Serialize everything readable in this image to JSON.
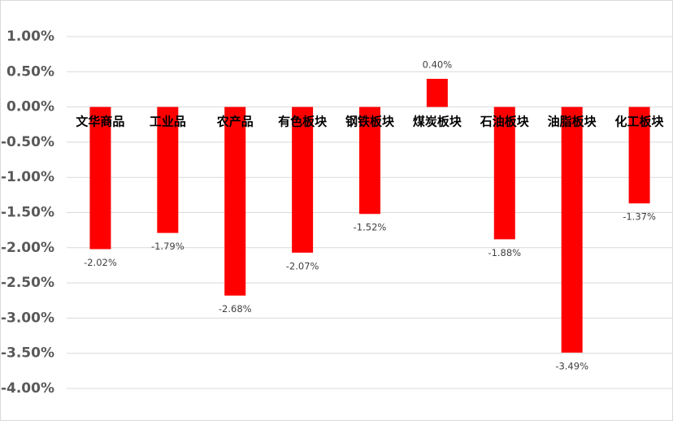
{
  "chart_data": {
    "type": "bar",
    "categories": [
      "文华商品",
      "工业品",
      "农产品",
      "有色板块",
      "钢铁板块",
      "煤炭板块",
      "石油板块",
      "油脂板块",
      "化工板块"
    ],
    "values": [
      -2.02,
      -1.79,
      -2.68,
      -2.07,
      -1.52,
      0.4,
      -1.88,
      -3.49,
      -1.37
    ],
    "value_labels": [
      "-2.02%",
      "-1.79%",
      "-2.68%",
      "-2.07%",
      "-1.52%",
      "0.40%",
      "-1.88%",
      "-3.49%",
      "-1.37%"
    ],
    "color": "#ff0000",
    "ylim": [
      -4,
      1
    ],
    "yticks": [
      {
        "value": 1,
        "label": "1.00%"
      },
      {
        "value": 0.5,
        "label": "0.50%"
      },
      {
        "value": 0,
        "label": "0.00%"
      },
      {
        "value": -0.5,
        "label": "-0.50%"
      },
      {
        "value": -1,
        "label": "-1.00%"
      },
      {
        "value": -1.5,
        "label": "-1.50%"
      },
      {
        "value": -2,
        "label": "-2.00%"
      },
      {
        "value": -2.5,
        "label": "-2.50%"
      },
      {
        "value": -3,
        "label": "-3.00%"
      },
      {
        "value": -3.5,
        "label": "-3.50%"
      },
      {
        "value": -4,
        "label": "-4.00%"
      }
    ],
    "grid": true
  }
}
